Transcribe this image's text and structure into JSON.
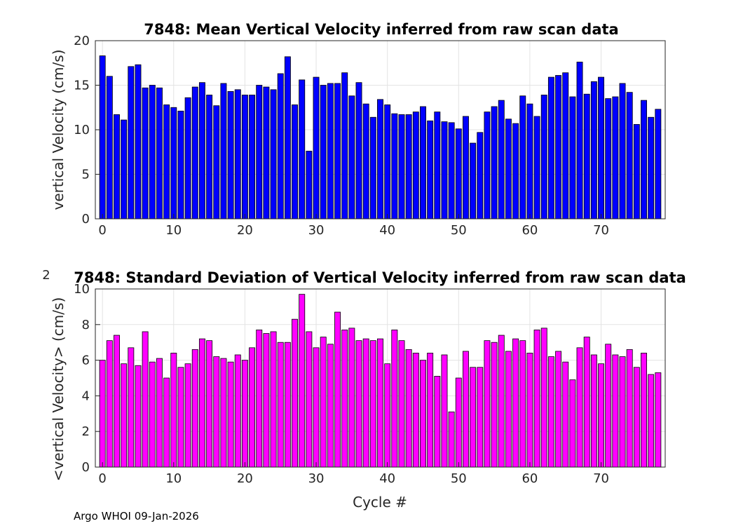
{
  "footer": "Argo WHOI 09-Jan-2026",
  "chart_data": [
    {
      "type": "bar",
      "title": "7848: Mean Vertical Velocity inferred from raw scan data",
      "xlabel": "",
      "ylabel": "vertical Velocity (cm/s)",
      "xlim": [
        -1,
        79
      ],
      "ylim": [
        0,
        20
      ],
      "xticks": [
        0,
        10,
        20,
        30,
        40,
        50,
        60,
        70
      ],
      "yticks": [
        0,
        5,
        10,
        15,
        20
      ],
      "grid": true,
      "bar_color": "#0000ff",
      "x": [
        0,
        1,
        2,
        3,
        4,
        5,
        6,
        7,
        8,
        9,
        10,
        11,
        12,
        13,
        14,
        15,
        16,
        17,
        18,
        19,
        20,
        21,
        22,
        23,
        24,
        25,
        26,
        27,
        28,
        29,
        30,
        31,
        32,
        33,
        34,
        35,
        36,
        37,
        38,
        39,
        40,
        41,
        42,
        43,
        44,
        45,
        46,
        47,
        48,
        49,
        50,
        51,
        52,
        53,
        54,
        55,
        56,
        57,
        58,
        59,
        60,
        61,
        62,
        63,
        64,
        65,
        66,
        67,
        68,
        69,
        70,
        71,
        72,
        73,
        74,
        75,
        76,
        77,
        78
      ],
      "values": [
        18.3,
        16.0,
        11.7,
        11.1,
        17.1,
        17.3,
        14.7,
        15.0,
        14.7,
        12.8,
        12.5,
        12.1,
        13.6,
        14.8,
        15.3,
        13.9,
        12.7,
        15.2,
        14.3,
        14.5,
        13.9,
        13.9,
        15.0,
        14.8,
        14.5,
        16.3,
        18.2,
        12.8,
        15.6,
        7.6,
        15.9,
        15.0,
        15.2,
        15.2,
        16.4,
        13.8,
        15.3,
        12.9,
        11.4,
        13.4,
        12.8,
        11.8,
        11.7,
        11.7,
        12.0,
        12.6,
        11.0,
        12.0,
        10.9,
        10.8,
        10.1,
        11.5,
        8.5,
        9.7,
        12.0,
        12.6,
        13.3,
        11.2,
        10.7,
        13.8,
        12.9,
        11.5,
        13.9,
        15.9,
        16.1,
        16.4,
        13.7,
        17.6,
        14.0,
        15.4,
        15.9,
        13.5,
        13.7,
        15.2,
        14.2,
        10.6,
        13.3,
        11.4,
        12.3
      ]
    },
    {
      "type": "bar",
      "title": "7848: Standard Deviation of Vertical Velocity inferred from raw scan data",
      "xlabel": "Cycle #",
      "ylabel": "<vertical Velocity> (cm/s)",
      "ylabel_suffix": "2",
      "xlim": [
        -1,
        79
      ],
      "ylim": [
        0,
        10
      ],
      "xticks": [
        0,
        10,
        20,
        30,
        40,
        50,
        60,
        70
      ],
      "yticks": [
        0,
        2,
        4,
        6,
        8,
        10
      ],
      "grid": true,
      "bar_color": "#ff00ff",
      "x": [
        0,
        1,
        2,
        3,
        4,
        5,
        6,
        7,
        8,
        9,
        10,
        11,
        12,
        13,
        14,
        15,
        16,
        17,
        18,
        19,
        20,
        21,
        22,
        23,
        24,
        25,
        26,
        27,
        28,
        29,
        30,
        31,
        32,
        33,
        34,
        35,
        36,
        37,
        38,
        39,
        40,
        41,
        42,
        43,
        44,
        45,
        46,
        47,
        48,
        49,
        50,
        51,
        52,
        53,
        54,
        55,
        56,
        57,
        58,
        59,
        60,
        61,
        62,
        63,
        64,
        65,
        66,
        67,
        68,
        69,
        70,
        71,
        72,
        73,
        74,
        75,
        76,
        77,
        78
      ],
      "values": [
        6.0,
        7.1,
        7.4,
        5.8,
        6.7,
        5.7,
        7.6,
        5.9,
        6.1,
        5.0,
        6.4,
        5.6,
        5.8,
        6.6,
        7.2,
        7.1,
        6.2,
        6.1,
        5.9,
        6.3,
        6.0,
        6.7,
        7.7,
        7.5,
        7.6,
        7.0,
        7.0,
        8.3,
        9.7,
        7.6,
        6.7,
        7.3,
        6.9,
        8.7,
        7.7,
        7.8,
        7.1,
        7.2,
        7.1,
        7.2,
        5.8,
        7.7,
        7.1,
        6.6,
        6.4,
        6.0,
        6.4,
        5.1,
        6.3,
        3.1,
        5.0,
        6.5,
        5.6,
        5.6,
        7.1,
        7.0,
        7.4,
        6.5,
        7.2,
        7.1,
        6.4,
        7.7,
        7.8,
        6.2,
        6.5,
        5.9,
        4.9,
        6.7,
        7.3,
        6.3,
        5.8,
        6.9,
        6.3,
        6.2,
        6.6,
        5.6,
        6.4,
        5.2,
        5.3
      ]
    }
  ]
}
